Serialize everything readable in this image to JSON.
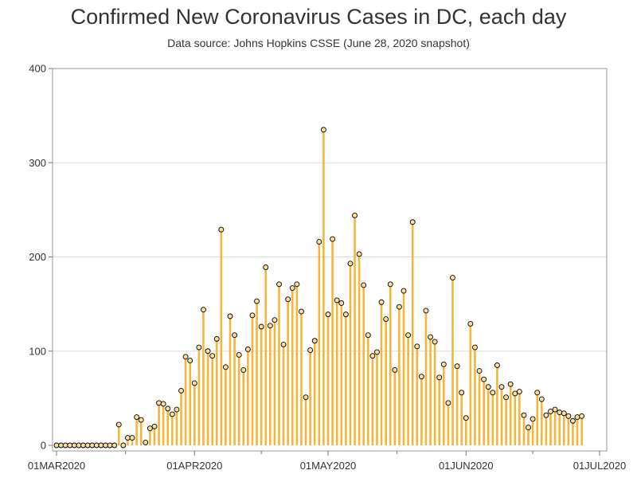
{
  "title": "Confirmed New Coronavirus Cases in DC, each day",
  "subtitle": "Data source: Johns Hopkins CSSE (June 28, 2020 snapshot)",
  "chart_data": {
    "type": "bar",
    "title": "Confirmed New Coronavirus Cases in DC, each day",
    "subtitle": "Data source: Johns Hopkins CSSE (June 28, 2020 snapshot)",
    "xlabel": "",
    "ylabel": "",
    "x_start": "2020-03-01",
    "x_range": [
      "2020-03-01",
      "2020-07-01"
    ],
    "ylim": [
      0,
      400
    ],
    "y_ticks": [
      0,
      100,
      200,
      300,
      400
    ],
    "x_tick_labels": [
      {
        "date": "2020-03-01",
        "label": "01MAR2020"
      },
      {
        "date": "2020-04-01",
        "label": "01APR2020"
      },
      {
        "date": "2020-05-01",
        "label": "01MAY2020"
      },
      {
        "date": "2020-06-01",
        "label": "01JUN2020"
      },
      {
        "date": "2020-07-01",
        "label": "01JUL2020"
      }
    ],
    "grid": true,
    "legend": "none",
    "bar_color": "#F5B53B",
    "marker_fill": "#F8DFA0",
    "marker_stroke": "#000000",
    "values": [
      0,
      0,
      0,
      0,
      0,
      0,
      0,
      0,
      0,
      0,
      0,
      0,
      0,
      0,
      22,
      0,
      8,
      8,
      30,
      27,
      3,
      18,
      20,
      45,
      44,
      39,
      33,
      38,
      58,
      94,
      90,
      66,
      104,
      144,
      100,
      95,
      113,
      229,
      83,
      137,
      117,
      96,
      80,
      102,
      138,
      153,
      126,
      189,
      127,
      133,
      171,
      107,
      155,
      167,
      171,
      142,
      51,
      101,
      111,
      216,
      335,
      139,
      219,
      154,
      151,
      139,
      193,
      244,
      203,
      170,
      117,
      95,
      99,
      152,
      134,
      171,
      80,
      147,
      164,
      117,
      237,
      105,
      73,
      143,
      115,
      110,
      72,
      86,
      45,
      178,
      84,
      56,
      29,
      129,
      104,
      79,
      70,
      62,
      56,
      85,
      62,
      51,
      65,
      55,
      57,
      32,
      19,
      28,
      56,
      49,
      32,
      36,
      38,
      35,
      34,
      31,
      26,
      30,
      31
    ]
  }
}
